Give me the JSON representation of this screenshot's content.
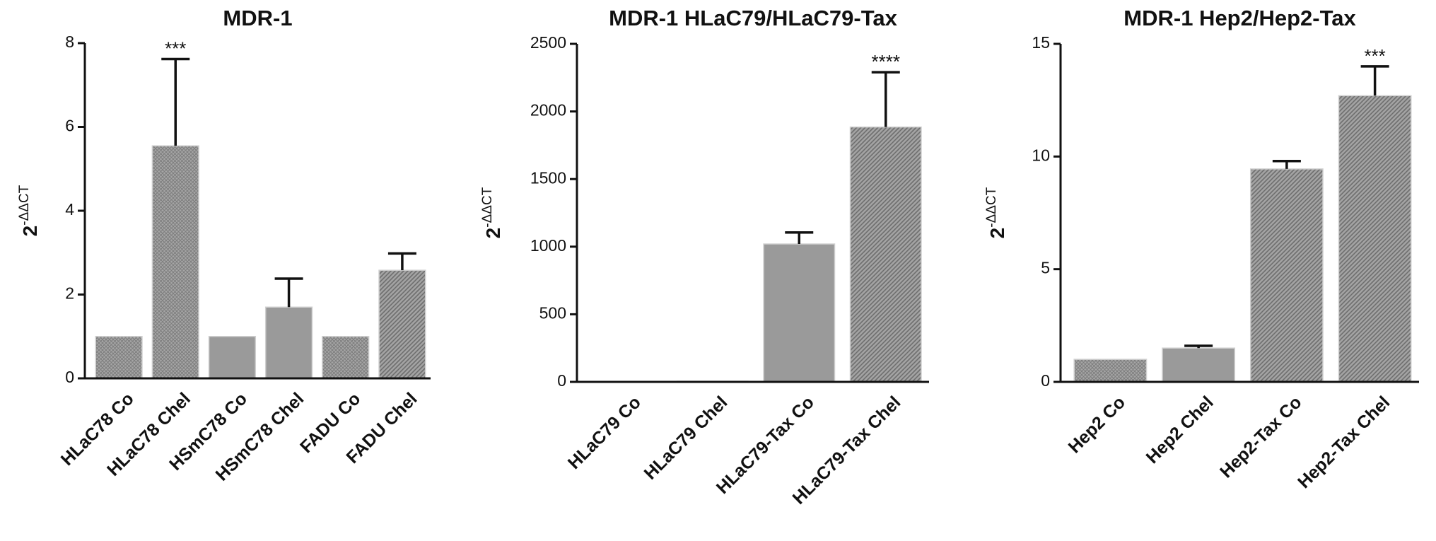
{
  "chart_data": [
    {
      "type": "bar",
      "title": "MDR-1",
      "y_label": {
        "base": "2",
        "exponent": "-ΔΔCT"
      },
      "categories": [
        "HLaC78 Co",
        "HLaC78 Chel",
        "HSmC78 Co",
        "HSmC78 Chel",
        "FADU Co",
        "FADU Chel"
      ],
      "values": [
        1,
        5.55,
        1,
        1.7,
        1,
        2.58
      ],
      "errors": [
        null,
        2.07,
        null,
        0.68,
        null,
        0.4
      ],
      "bar_styles": [
        "crosshatch",
        "crosshatch",
        "solid",
        "solid",
        "crosshatch",
        "diagonal"
      ],
      "color": "#9a9a9a",
      "annotations": [
        {
          "index": 1,
          "text": "***"
        }
      ],
      "ylim": [
        0,
        8
      ],
      "yticks": [
        0,
        2,
        4,
        6,
        8
      ]
    },
    {
      "type": "bar",
      "title": "MDR-1 HLaC79/HLaC79-Tax",
      "y_label": {
        "base": "2",
        "exponent": "-ΔΔCT"
      },
      "categories": [
        "HLaC79 Co",
        "HLaC79 Chel",
        "HLaC79-Tax Co",
        "HLaC79-Tax Chel"
      ],
      "values": [
        1,
        5,
        1020,
        1885
      ],
      "errors": [
        null,
        null,
        85,
        405
      ],
      "bar_styles": [
        "solid",
        "solid",
        "solid",
        "diagonal"
      ],
      "color": "#9a9a9a",
      "annotations": [
        {
          "index": 3,
          "text": "****"
        }
      ],
      "ylim": [
        0,
        2500
      ],
      "yticks": [
        0,
        500,
        1000,
        1500,
        2000,
        2500
      ]
    },
    {
      "type": "bar",
      "title": "MDR-1 Hep2/Hep2-Tax",
      "y_label": {
        "base": "2",
        "exponent": "-ΔΔCT"
      },
      "categories": [
        "Hep2 Co",
        "Hep2 Chel",
        "Hep2-Tax Co",
        "Hep2-Tax Chel"
      ],
      "values": [
        1,
        1.5,
        9.45,
        12.7
      ],
      "errors": [
        null,
        0.1,
        0.35,
        1.3
      ],
      "bar_styles": [
        "crosshatch",
        "solid",
        "diagonal",
        "diagonal"
      ],
      "color": "#9a9a9a",
      "annotations": [
        {
          "index": 3,
          "text": "***"
        }
      ],
      "ylim": [
        0,
        15
      ],
      "yticks": [
        0,
        5,
        10,
        15
      ]
    }
  ]
}
